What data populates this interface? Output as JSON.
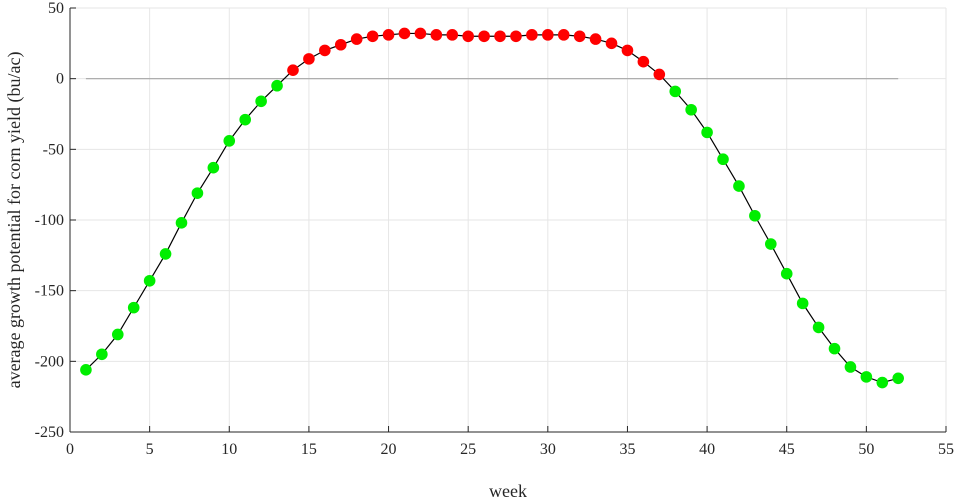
{
  "chart_data": {
    "type": "scatter",
    "title": "",
    "xlabel": "week",
    "ylabel": "average growth potential for corn yield (bu/ac)",
    "xlim": [
      0,
      55
    ],
    "ylim": [
      -250,
      50
    ],
    "xticks": [
      0,
      5,
      10,
      15,
      20,
      25,
      30,
      35,
      40,
      45,
      50,
      55
    ],
    "yticks": [
      50,
      0,
      -50,
      -100,
      -150,
      -200,
      -250
    ],
    "grid": true,
    "reference_line": {
      "y": 0,
      "x_range": [
        1,
        52
      ],
      "color": "#a6a6a6"
    },
    "colors": {
      "positive": "#ff0000",
      "negative": "#00ee00",
      "line": "#000000"
    },
    "series": [
      {
        "x": [
          1,
          2,
          3,
          4,
          5,
          6,
          7,
          8,
          9,
          10,
          11,
          12,
          13,
          14,
          15,
          16,
          17,
          18,
          19,
          20,
          21,
          22,
          23,
          24,
          25,
          26,
          27,
          28,
          29,
          30,
          31,
          32,
          33,
          34,
          35,
          36,
          37,
          38,
          39,
          40,
          41,
          42,
          43,
          44,
          45,
          46,
          47,
          48,
          49,
          50,
          51,
          52
        ],
        "y": [
          -206,
          -195,
          -181,
          -162,
          -143,
          -124,
          -102,
          -81,
          -63,
          -44,
          -29,
          -16,
          -5,
          6,
          14,
          20,
          24,
          28,
          30,
          31,
          32,
          32,
          31,
          31,
          30,
          30,
          30,
          30,
          31,
          31,
          31,
          30,
          28,
          25,
          20,
          12,
          3,
          -9,
          -22,
          -38,
          -57,
          -76,
          -97,
          -117,
          -138,
          -159,
          -176,
          -191,
          -204,
          -211,
          -215,
          -212
        ]
      }
    ]
  }
}
